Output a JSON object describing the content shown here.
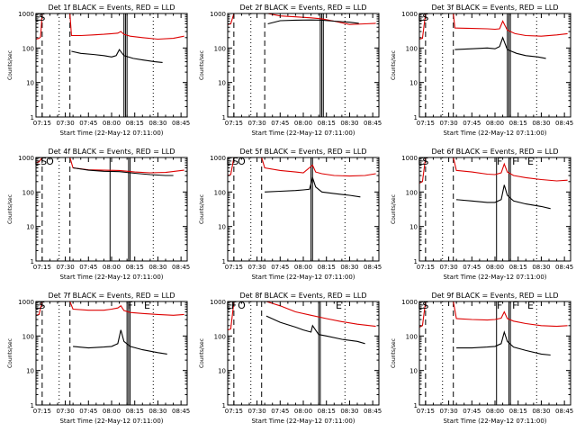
{
  "figure": {
    "background": "#ffffff",
    "axis_color": "#000000",
    "events_color": "#000000",
    "lld_color": "#dd0000"
  },
  "chart_data": [
    {
      "type": "line",
      "title": "Det 1f BLACK = Events, RED = LLD",
      "xlabel": "Start Time (22-May-12 07:11:00)",
      "ylabel": "Counts/sec",
      "xlim": [
        "07:11",
        "08:49"
      ],
      "ylim": [
        1,
        1000
      ],
      "yscale": "log",
      "x_ticks": [
        "07:15",
        "07:30",
        "07:45",
        "08:00",
        "08:15",
        "08:30",
        "08:45"
      ],
      "y_ticks": [
        "1",
        "10",
        "100",
        "1000"
      ],
      "markers": [
        {
          "label": "E",
          "x": "07:12"
        },
        {
          "label": "S",
          "x": "07:15"
        }
      ],
      "dashed_lines": [
        "07:15",
        "07:33"
      ],
      "dotted_lines": [
        "07:26",
        "08:27"
      ],
      "solid_lines": [
        "08:08",
        "08:09",
        "08:10"
      ],
      "series": [
        {
          "color": "red",
          "x": [
            "07:11",
            "07:13",
            "07:14",
            "07:15",
            "07:33",
            "07:34",
            "07:40",
            "07:48",
            "07:55",
            "08:00",
            "08:04",
            "08:06",
            "08:08",
            "08:12",
            "08:20",
            "08:30",
            "08:40",
            "08:47"
          ],
          "values": [
            180,
            190,
            210,
            1000,
            1000,
            230,
            230,
            240,
            250,
            260,
            270,
            300,
            250,
            220,
            200,
            180,
            190,
            220
          ]
        },
        {
          "color": "black",
          "x": [
            "07:34",
            "07:40",
            "07:48",
            "07:55",
            "08:00",
            "08:03",
            "08:05",
            "08:08",
            "08:14",
            "08:20",
            "08:28",
            "08:33"
          ],
          "values": [
            80,
            70,
            65,
            60,
            55,
            60,
            90,
            60,
            50,
            45,
            40,
            38
          ]
        }
      ]
    },
    {
      "type": "line",
      "title": "Det 2f BLACK = Events, RED = LLD",
      "xlabel": "Start Time (22-May-12 07:11:00)",
      "ylabel": "Counts/sec",
      "xlim": [
        "07:11",
        "08:49"
      ],
      "ylim": [
        1,
        1000
      ],
      "yscale": "log",
      "x_ticks": [
        "07:15",
        "07:30",
        "07:45",
        "08:00",
        "08:15",
        "08:30",
        "08:45"
      ],
      "y_ticks": [
        "1",
        "10",
        "100",
        "1000"
      ],
      "markers": [],
      "dashed_lines": [
        "07:15",
        "07:35"
      ],
      "dotted_lines": [
        "07:26",
        "08:27"
      ],
      "solid_lines": [
        "08:11",
        "08:12",
        "08:13"
      ],
      "series": [
        {
          "color": "red",
          "x": [
            "07:11",
            "07:13",
            "07:15",
            "07:35",
            "07:37",
            "07:45",
            "07:55",
            "08:05",
            "08:12",
            "08:20",
            "08:30",
            "08:40",
            "08:47"
          ],
          "values": [
            480,
            500,
            1000,
            1000,
            1000,
            850,
            800,
            750,
            700,
            600,
            480,
            500,
            520
          ]
        },
        {
          "color": "black",
          "x": [
            "07:37",
            "07:45",
            "07:55",
            "08:05",
            "08:12",
            "08:20",
            "08:30",
            "08:36"
          ],
          "values": [
            500,
            620,
            640,
            650,
            640,
            600,
            560,
            520
          ]
        }
      ]
    },
    {
      "type": "line",
      "title": "Det 3f BLACK = Events, RED = LLD",
      "xlabel": "Start Time (22-May-12 07:11:00)",
      "ylabel": "Counts/sec",
      "xlim": [
        "07:11",
        "08:49"
      ],
      "ylim": [
        1,
        1000
      ],
      "yscale": "log",
      "x_ticks": [
        "07:15",
        "07:30",
        "07:45",
        "08:00",
        "08:15",
        "08:30",
        "08:45"
      ],
      "y_ticks": [
        "1",
        "10",
        "100",
        "1000"
      ],
      "markers": [
        {
          "label": "E",
          "x": "07:12"
        },
        {
          "label": "S",
          "x": "07:15"
        }
      ],
      "dashed_lines": [
        "07:15",
        "07:33"
      ],
      "dotted_lines": [
        "07:26",
        "08:27"
      ],
      "solid_lines": [
        "08:08",
        "08:09",
        "08:10"
      ],
      "series": [
        {
          "color": "red",
          "x": [
            "07:11",
            "07:13",
            "07:15",
            "07:33",
            "07:34",
            "07:45",
            "07:55",
            "08:00",
            "08:03",
            "08:05",
            "08:08",
            "08:13",
            "08:20",
            "08:30",
            "08:40",
            "08:47"
          ],
          "values": [
            180,
            190,
            1000,
            1000,
            380,
            370,
            360,
            350,
            360,
            600,
            330,
            260,
            230,
            220,
            240,
            260
          ]
        },
        {
          "color": "black",
          "x": [
            "07:34",
            "07:45",
            "07:55",
            "08:00",
            "08:03",
            "08:05",
            "08:08",
            "08:14",
            "08:20",
            "08:28",
            "08:33"
          ],
          "values": [
            90,
            95,
            100,
            95,
            110,
            200,
            90,
            70,
            60,
            55,
            50
          ]
        }
      ]
    },
    {
      "type": "line",
      "title": "Det 4f BLACK = Events, RED = LLD",
      "xlabel": "Start Time (22-May-12 07:11:00)",
      "ylabel": "Counts/sec",
      "xlim": [
        "07:11",
        "08:49"
      ],
      "ylim": [
        1,
        1000
      ],
      "yscale": "log",
      "x_ticks": [
        "07:15",
        "07:30",
        "07:45",
        "08:00",
        "08:15",
        "08:30",
        "08:45"
      ],
      "y_ticks": [
        "1",
        "10",
        "100",
        "1000"
      ],
      "markers": [
        {
          "label": "E",
          "x": "07:12"
        },
        {
          "label": "S",
          "x": "07:16"
        },
        {
          "label": "O",
          "x": "07:20"
        }
      ],
      "dashed_lines": [
        "07:15",
        "07:33"
      ],
      "dotted_lines": [
        "07:26",
        "08:27"
      ],
      "solid_lines": [
        "07:59",
        "08:11",
        "08:12"
      ],
      "series": [
        {
          "color": "red",
          "x": [
            "07:11",
            "07:13",
            "07:15",
            "07:33",
            "07:35",
            "07:45",
            "07:55",
            "08:05",
            "08:15",
            "08:25",
            "08:35",
            "08:47"
          ],
          "values": [
            700,
            750,
            1000,
            1000,
            500,
            440,
            430,
            420,
            380,
            360,
            370,
            430
          ]
        },
        {
          "color": "black",
          "x": [
            "07:35",
            "07:45",
            "07:55",
            "08:05",
            "08:15",
            "08:25",
            "08:35",
            "08:40"
          ],
          "values": [
            500,
            430,
            400,
            390,
            350,
            320,
            300,
            300
          ]
        }
      ]
    },
    {
      "type": "line",
      "title": "Det 5f BLACK = Events, RED = LLD",
      "xlabel": "Start Time (22-May-12 07:11:00)",
      "ylabel": "Counts/sec",
      "xlim": [
        "07:11",
        "08:49"
      ],
      "ylim": [
        1,
        1000
      ],
      "yscale": "log",
      "x_ticks": [
        "07:15",
        "07:30",
        "07:45",
        "08:00",
        "08:15",
        "08:30",
        "08:45"
      ],
      "y_ticks": [
        "1",
        "10",
        "100",
        "1000"
      ],
      "markers": [
        {
          "label": "E",
          "x": "07:12"
        },
        {
          "label": "S",
          "x": "07:16"
        },
        {
          "label": "O",
          "x": "07:20"
        }
      ],
      "dashed_lines": [
        "07:15",
        "07:33"
      ],
      "dotted_lines": [
        "07:26",
        "08:27"
      ],
      "solid_lines": [
        "08:05",
        "08:06"
      ],
      "series": [
        {
          "color": "red",
          "x": [
            "07:11",
            "07:13",
            "07:15",
            "07:33",
            "07:35",
            "07:45",
            "07:55",
            "08:00",
            "08:06",
            "08:08",
            "08:12",
            "08:20",
            "08:30",
            "08:40",
            "08:47"
          ],
          "values": [
            300,
            320,
            1000,
            1000,
            500,
            420,
            380,
            360,
            600,
            380,
            340,
            300,
            290,
            300,
            340
          ]
        },
        {
          "color": "black",
          "x": [
            "07:35",
            "07:45",
            "07:55",
            "08:00",
            "08:04",
            "08:06",
            "08:08",
            "08:12",
            "08:20",
            "08:30",
            "08:37"
          ],
          "values": [
            100,
            105,
            110,
            115,
            120,
            260,
            140,
            100,
            90,
            80,
            72
          ]
        }
      ]
    },
    {
      "type": "line",
      "title": "Det 6f BLACK = Events, RED = LLD",
      "xlabel": "Start Time (22-May-12 07:11:00)",
      "ylabel": "Counts/sec",
      "xlim": [
        "07:11",
        "08:49"
      ],
      "ylim": [
        1,
        1000
      ],
      "yscale": "log",
      "x_ticks": [
        "07:15",
        "07:30",
        "07:45",
        "08:00",
        "08:15",
        "08:30",
        "08:45"
      ],
      "y_ticks": [
        "1",
        "10",
        "100",
        "1000"
      ],
      "markers": [
        {
          "label": "E",
          "x": "07:12"
        },
        {
          "label": "S",
          "x": "07:15"
        },
        {
          "label": "F",
          "x": "08:03"
        },
        {
          "label": "F",
          "x": "08:13"
        },
        {
          "label": "E",
          "x": "08:23"
        }
      ],
      "dashed_lines": [
        "07:15",
        "07:33"
      ],
      "dotted_lines": [
        "07:26",
        "08:27"
      ],
      "solid_lines": [
        "08:01",
        "08:09",
        "08:10"
      ],
      "series": [
        {
          "color": "red",
          "x": [
            "07:11",
            "07:13",
            "07:15",
            "07:33",
            "07:35",
            "07:45",
            "07:55",
            "08:00",
            "08:04",
            "08:06",
            "08:08",
            "08:12",
            "08:20",
            "08:30",
            "08:40",
            "08:47"
          ],
          "values": [
            180,
            200,
            1000,
            1000,
            420,
            380,
            330,
            320,
            360,
            650,
            380,
            300,
            260,
            230,
            210,
            220
          ]
        },
        {
          "color": "black",
          "x": [
            "07:35",
            "07:45",
            "07:55",
            "08:00",
            "08:04",
            "08:06",
            "08:08",
            "08:12",
            "08:20",
            "08:30",
            "08:36"
          ],
          "values": [
            60,
            55,
            50,
            50,
            60,
            160,
            80,
            55,
            45,
            38,
            33
          ]
        }
      ]
    },
    {
      "type": "line",
      "title": "Det 7f BLACK = Events, RED = LLD",
      "xlabel": "Start Time (22-May-12 07:11:00)",
      "ylabel": "Counts/sec",
      "xlim": [
        "07:11",
        "08:49"
      ],
      "ylim": [
        1,
        1000
      ],
      "yscale": "log",
      "x_ticks": [
        "07:15",
        "07:30",
        "07:45",
        "08:00",
        "08:15",
        "08:30",
        "08:45"
      ],
      "y_ticks": [
        "1",
        "10",
        "100",
        "1000"
      ],
      "markers": [
        {
          "label": "E",
          "x": "07:12"
        },
        {
          "label": "S",
          "x": "07:15"
        },
        {
          "label": "F",
          "x": "08:12"
        },
        {
          "label": "E",
          "x": "08:23"
        }
      ],
      "dashed_lines": [
        "07:15",
        "07:33"
      ],
      "dotted_lines": [
        "07:26",
        "08:27"
      ],
      "solid_lines": [
        "08:10",
        "08:11",
        "08:12"
      ],
      "series": [
        {
          "color": "red",
          "x": [
            "07:11",
            "07:13",
            "07:15",
            "07:33",
            "07:35",
            "07:45",
            "07:55",
            "08:00",
            "08:04",
            "08:06",
            "08:08",
            "08:12",
            "08:20",
            "08:30",
            "08:40",
            "08:47"
          ],
          "values": [
            400,
            420,
            1000,
            1000,
            600,
            560,
            560,
            600,
            650,
            750,
            550,
            480,
            450,
            420,
            400,
            420
          ]
        },
        {
          "color": "black",
          "x": [
            "07:35",
            "07:45",
            "07:55",
            "08:00",
            "08:04",
            "08:06",
            "08:08",
            "08:12",
            "08:20",
            "08:30",
            "08:36"
          ],
          "values": [
            50,
            45,
            48,
            50,
            60,
            150,
            70,
            50,
            40,
            33,
            30
          ]
        }
      ]
    },
    {
      "type": "line",
      "title": "Det 8f BLACK = Events, RED = LLD",
      "xlabel": "Start Time (22-May-12 07:11:00)",
      "ylabel": "Counts/sec",
      "xlim": [
        "07:11",
        "08:49"
      ],
      "ylim": [
        1,
        1000
      ],
      "yscale": "log",
      "x_ticks": [
        "07:15",
        "07:30",
        "07:45",
        "08:00",
        "08:15",
        "08:30",
        "08:45"
      ],
      "y_ticks": [
        "1",
        "10",
        "100",
        "1000"
      ],
      "markers": [
        {
          "label": "E",
          "x": "07:12"
        },
        {
          "label": "F",
          "x": "07:15"
        },
        {
          "label": "O",
          "x": "07:20"
        },
        {
          "label": "E",
          "x": "08:23"
        }
      ],
      "dashed_lines": [
        "07:15",
        "07:33"
      ],
      "dotted_lines": [
        "07:26",
        "08:27"
      ],
      "solid_lines": [
        "08:10",
        "08:11"
      ],
      "series": [
        {
          "color": "red",
          "x": [
            "07:11",
            "07:13",
            "07:15",
            "07:33",
            "07:36",
            "07:45",
            "07:55",
            "08:05",
            "08:15",
            "08:25",
            "08:35",
            "08:47"
          ],
          "values": [
            150,
            160,
            1000,
            1000,
            1000,
            750,
            500,
            400,
            320,
            260,
            220,
            190
          ]
        },
        {
          "color": "black",
          "x": [
            "07:36",
            "07:45",
            "07:55",
            "08:00",
            "08:05",
            "08:06",
            "08:10",
            "08:15",
            "08:25",
            "08:35",
            "08:40"
          ],
          "values": [
            380,
            250,
            180,
            150,
            130,
            200,
            110,
            100,
            80,
            70,
            60
          ]
        }
      ]
    },
    {
      "type": "line",
      "title": "Det 9f BLACK = Events, RED = LLD",
      "xlabel": "Start Time (22-May-12 07:11:00)",
      "ylabel": "Counts/sec",
      "xlim": [
        "07:11",
        "08:49"
      ],
      "ylim": [
        1,
        1000
      ],
      "yscale": "log",
      "x_ticks": [
        "07:15",
        "07:30",
        "07:45",
        "08:00",
        "08:15",
        "08:30",
        "08:45"
      ],
      "y_ticks": [
        "1",
        "10",
        "100",
        "1000"
      ],
      "markers": [
        {
          "label": "E",
          "x": "07:12"
        },
        {
          "label": "S",
          "x": "07:15"
        },
        {
          "label": "F",
          "x": "08:03"
        },
        {
          "label": "F",
          "x": "08:13"
        },
        {
          "label": "E",
          "x": "08:23"
        }
      ],
      "dashed_lines": [
        "07:15",
        "07:33"
      ],
      "dotted_lines": [
        "07:26",
        "08:27"
      ],
      "solid_lines": [
        "08:01",
        "08:09",
        "08:10"
      ],
      "series": [
        {
          "color": "red",
          "x": [
            "07:11",
            "07:13",
            "07:15",
            "07:33",
            "07:35",
            "07:45",
            "07:55",
            "08:00",
            "08:04",
            "08:06",
            "08:08",
            "08:12",
            "08:20",
            "08:30",
            "08:40",
            "08:47"
          ],
          "values": [
            180,
            200,
            1000,
            1000,
            320,
            300,
            290,
            300,
            330,
            500,
            320,
            270,
            230,
            200,
            190,
            200
          ]
        },
        {
          "color": "black",
          "x": [
            "07:35",
            "07:45",
            "07:55",
            "08:00",
            "08:04",
            "08:06",
            "08:08",
            "08:12",
            "08:20",
            "08:30",
            "08:36"
          ],
          "values": [
            45,
            45,
            48,
            50,
            60,
            130,
            70,
            48,
            38,
            30,
            28
          ]
        }
      ]
    }
  ]
}
